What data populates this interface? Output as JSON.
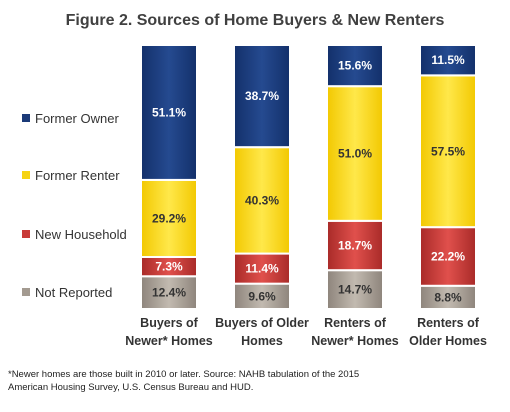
{
  "chart_data": {
    "type": "bar",
    "stacked": true,
    "title": "Figure 2.  Sources of Home Buyers & New Renters",
    "categories": [
      [
        "Buyers of",
        "Newer* Homes"
      ],
      [
        "Buyers of Older",
        "Homes"
      ],
      [
        "Renters of",
        "Newer* Homes"
      ],
      [
        "Renters of",
        "Older Homes"
      ]
    ],
    "series": [
      {
        "name": "Not Reported",
        "color": "#a39a90",
        "values": [
          12.4,
          9.6,
          14.7,
          8.8
        ],
        "labels": [
          "12.4%",
          "9.6%",
          "14.7%",
          "8.8%"
        ]
      },
      {
        "name": "New Household",
        "color": "#c83a38",
        "values": [
          7.3,
          11.4,
          18.7,
          22.2
        ],
        "labels": [
          "7.3%",
          "11.4%",
          "18.7%",
          "22.2%"
        ]
      },
      {
        "name": "Former Renter",
        "color": "#f6d313",
        "values": [
          29.2,
          40.3,
          51.0,
          57.5
        ],
        "labels": [
          "29.2%",
          "40.3%",
          "51.0%",
          "57.5%"
        ]
      },
      {
        "name": "Former Owner",
        "color": "#1b3a78",
        "values": [
          51.1,
          38.7,
          15.6,
          11.5
        ],
        "labels": [
          "51.1%",
          "38.7%",
          "15.6%",
          "11.5%"
        ]
      }
    ],
    "label_colors": {
      "Not Reported": "#333333",
      "New Household": "#ffffff",
      "Former Renter": "#333333",
      "Former Owner": "#ffffff"
    },
    "ylim": [
      0,
      100
    ],
    "legend_position": "left",
    "grid": false
  },
  "legend": [
    {
      "label": "Former Owner",
      "color": "#1b3a78"
    },
    {
      "label": "Former Renter",
      "color": "#f6d313"
    },
    {
      "label": "New Household",
      "color": "#c83a38"
    },
    {
      "label": "Not Reported",
      "color": "#a39a90"
    }
  ],
  "footnote": {
    "line1": "*Newer  homes are those built in 2010 or later.   Source: NAHB tabulation of the 2015",
    "line2": "American Housing Survey,  U.S. Census Bureau and HUD."
  }
}
